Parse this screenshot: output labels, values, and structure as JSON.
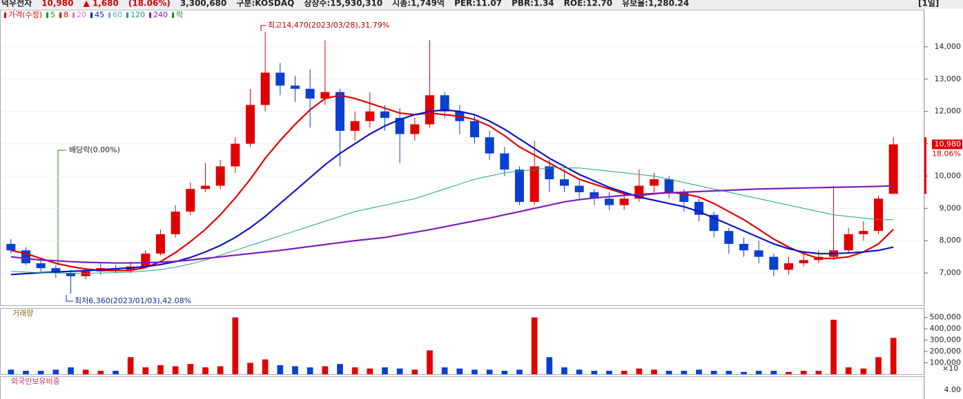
{
  "header": {
    "items": [
      "덕우전자",
      "10,980",
      "▲ 1,680",
      "(18.06%)",
      "3,300,680",
      "구분:KOSDAQ",
      "상장수:15,930,310",
      "시총:1,749억",
      "PER:11.07",
      "PBR:1.34",
      "ROE:12.70",
      "유보율:1,280.24"
    ],
    "period": "[1일]"
  },
  "chart_data": [
    {
      "type": "candlestick",
      "legend_title": "가격(수정)",
      "legend_extra": "락",
      "annotations": {
        "high": "최고14,470(2023/03/28),31.79%",
        "low": "최저6,360(2023/01/03),42.08%",
        "dividend": "배당락(0.00%)"
      },
      "last_price_label": "10,980",
      "last_change_label": "18.06%",
      "up_color": "#e00000",
      "down_color": "#0a3fd0",
      "ylim": [
        6000,
        15150
      ],
      "yticks": [
        {
          "value": 7000,
          "label": "7,000"
        },
        {
          "value": 8000,
          "label": "8,000"
        },
        {
          "value": 9000,
          "label": "9,000"
        },
        {
          "value": 10000,
          "label": "10,000"
        },
        {
          "value": 11000,
          "label": "11,000"
        },
        {
          "value": 12000,
          "label": "12,000"
        },
        {
          "value": 13000,
          "label": "13,000"
        },
        {
          "value": 14000,
          "label": "14,000"
        }
      ],
      "open": [
        7900,
        7700,
        7300,
        7150,
        7000,
        6900,
        7050,
        7150,
        7100,
        7200,
        7600,
        8200,
        8900,
        9600,
        9700,
        10300,
        11000,
        12200,
        13200,
        12800,
        12700,
        12400,
        12600,
        11400,
        11700,
        12000,
        11800,
        11300,
        11600,
        12500,
        12000,
        11700,
        11200,
        10700,
        10200,
        9200,
        10300,
        9900,
        9700,
        9500,
        9300,
        9100,
        9300,
        9700,
        9900,
        9500,
        9200,
        8800,
        8300,
        7900,
        7700,
        7500,
        7100,
        7300,
        7400,
        7500,
        7700,
        8200,
        8300,
        9450
      ],
      "high": [
        8050,
        7800,
        7400,
        7250,
        7100,
        7150,
        7300,
        7250,
        7350,
        7700,
        8350,
        9100,
        9800,
        10400,
        10500,
        11200,
        12700,
        14470,
        13500,
        13100,
        13300,
        14200,
        12700,
        12000,
        12600,
        12200,
        12100,
        11800,
        14200,
        12600,
        12200,
        11900,
        11400,
        10900,
        10300,
        11100,
        10500,
        10200,
        9900,
        9600,
        9500,
        9400,
        10200,
        10100,
        10000,
        9600,
        9300,
        8900,
        8400,
        8100,
        8000,
        7600,
        7500,
        7600,
        7700,
        9700,
        8400,
        8600,
        9400,
        11200
      ],
      "low": [
        7600,
        7250,
        7050,
        6850,
        6360,
        6800,
        6950,
        7000,
        7000,
        7150,
        7550,
        8100,
        8800,
        9500,
        9600,
        10100,
        10900,
        12000,
        12500,
        12300,
        11500,
        12200,
        10300,
        11100,
        11500,
        11400,
        10400,
        11100,
        11500,
        11800,
        11300,
        11000,
        10500,
        10000,
        9100,
        9100,
        9500,
        9500,
        9300,
        9100,
        8950,
        8950,
        9200,
        9500,
        9300,
        8900,
        8600,
        8100,
        7600,
        7500,
        7300,
        6900,
        6950,
        7200,
        7300,
        7400,
        7600,
        8000,
        8200,
        9450
      ],
      "close": [
        7700,
        7300,
        7150,
        7000,
        6900,
        7050,
        7150,
        7100,
        7200,
        7600,
        8200,
        8900,
        9600,
        9700,
        10300,
        11000,
        12200,
        13200,
        12800,
        12700,
        12400,
        12600,
        11400,
        11700,
        12000,
        11800,
        11300,
        11600,
        12500,
        12000,
        11700,
        11200,
        10700,
        10200,
        9200,
        10300,
        9900,
        9700,
        9500,
        9300,
        9100,
        9300,
        9700,
        9900,
        9500,
        9200,
        8800,
        8300,
        7900,
        7700,
        7500,
        7100,
        7300,
        7400,
        7500,
        7700,
        8200,
        8300,
        9300,
        10980
      ],
      "series": [
        {
          "name": "5",
          "color": "#00a000"
        },
        {
          "name": "8",
          "color": "#e00000",
          "width": 2.2,
          "values": [
            7700,
            7600,
            7450,
            7300,
            7200,
            7120,
            7080,
            7070,
            7080,
            7170,
            7350,
            7630,
            7970,
            8350,
            8800,
            9320,
            9900,
            10550,
            11100,
            11600,
            12050,
            12400,
            12500,
            12400,
            12250,
            12100,
            11950,
            11900,
            11950,
            11900,
            11850,
            11750,
            11550,
            11250,
            10900,
            10650,
            10400,
            10150,
            9900,
            9750,
            9600,
            9450,
            9400,
            9450,
            9500,
            9450,
            9350,
            9150,
            8900,
            8650,
            8350,
            8050,
            7800,
            7600,
            7450,
            7450,
            7500,
            7650,
            7900,
            8350
          ]
        },
        {
          "name": "20",
          "color": "#e070c8"
        },
        {
          "name": "45",
          "color": "#0a14c8",
          "width": 2.2,
          "values": [
            6950,
            6980,
            7010,
            7030,
            7050,
            7070,
            7100,
            7130,
            7160,
            7200,
            7260,
            7350,
            7480,
            7650,
            7850,
            8100,
            8400,
            8750,
            9150,
            9550,
            9950,
            10350,
            10700,
            11000,
            11300,
            11550,
            11750,
            11900,
            12000,
            12050,
            12000,
            11900,
            11700,
            11450,
            11150,
            10850,
            10550,
            10300,
            10050,
            9850,
            9650,
            9500,
            9350,
            9250,
            9150,
            9050,
            8900,
            8700,
            8500,
            8300,
            8100,
            7900,
            7750,
            7650,
            7600,
            7600,
            7620,
            7650,
            7700,
            7800
          ]
        },
        {
          "name": "60",
          "color": "#6aa8c8"
        },
        {
          "name": "120",
          "color": "#20a080",
          "width": 1,
          "values": [
            7050,
            7030,
            7010,
            7000,
            6990,
            6990,
            7000,
            7010,
            7030,
            7060,
            7100,
            7180,
            7280,
            7400,
            7550,
            7700,
            7850,
            8000,
            8150,
            8300,
            8450,
            8600,
            8750,
            8900,
            9000,
            9100,
            9200,
            9300,
            9450,
            9600,
            9750,
            9900,
            10000,
            10100,
            10150,
            10200,
            10250,
            10250,
            10250,
            10200,
            10150,
            10100,
            10050,
            10000,
            9900,
            9800,
            9700,
            9600,
            9500,
            9400,
            9300,
            9200,
            9100,
            9000,
            8900,
            8800,
            8750,
            8700,
            8650,
            8650
          ]
        },
        {
          "name": "240",
          "color": "#7a1cc0",
          "width": 2.2,
          "values": [
            7500,
            7450,
            7400,
            7380,
            7350,
            7330,
            7320,
            7310,
            7310,
            7320,
            7330,
            7360,
            7400,
            7450,
            7500,
            7550,
            7600,
            7650,
            7700,
            7760,
            7820,
            7880,
            7940,
            8000,
            8050,
            8100,
            8180,
            8260,
            8340,
            8430,
            8520,
            8610,
            8700,
            8800,
            8900,
            9000,
            9100,
            9200,
            9270,
            9320,
            9360,
            9400,
            9430,
            9460,
            9480,
            9500,
            9520,
            9540,
            9560,
            9580,
            9600,
            9610,
            9620,
            9630,
            9640,
            9650,
            9660,
            9670,
            9680,
            9700
          ]
        }
      ]
    },
    {
      "type": "bar",
      "title": "거래량",
      "unit_label": "×10",
      "ylim": [
        0,
        583000
      ],
      "yticks": [
        {
          "value": 100000,
          "label": "100,000"
        },
        {
          "value": 200000,
          "label": "200,000"
        },
        {
          "value": 300000,
          "label": "300,000"
        },
        {
          "value": 400000,
          "label": "400,000"
        },
        {
          "value": 500000,
          "label": "500,000"
        }
      ],
      "values": [
        40000,
        30000,
        30000,
        40000,
        60000,
        40000,
        30000,
        30000,
        150000,
        60000,
        80000,
        70000,
        90000,
        60000,
        70000,
        500000,
        100000,
        130000,
        80000,
        70000,
        60000,
        70000,
        90000,
        60000,
        50000,
        60000,
        50000,
        40000,
        210000,
        60000,
        50000,
        40000,
        40000,
        30000,
        40000,
        500000,
        150000,
        60000,
        40000,
        30000,
        30000,
        30000,
        50000,
        40000,
        30000,
        30000,
        40000,
        30000,
        30000,
        20000,
        30000,
        30000,
        20000,
        30000,
        30000,
        480000,
        60000,
        50000,
        150000,
        320000
      ]
    },
    {
      "type": "bar",
      "title": "외국인보유비중",
      "yticks": [
        {
          "value": 4,
          "label": "4.00"
        }
      ]
    }
  ]
}
